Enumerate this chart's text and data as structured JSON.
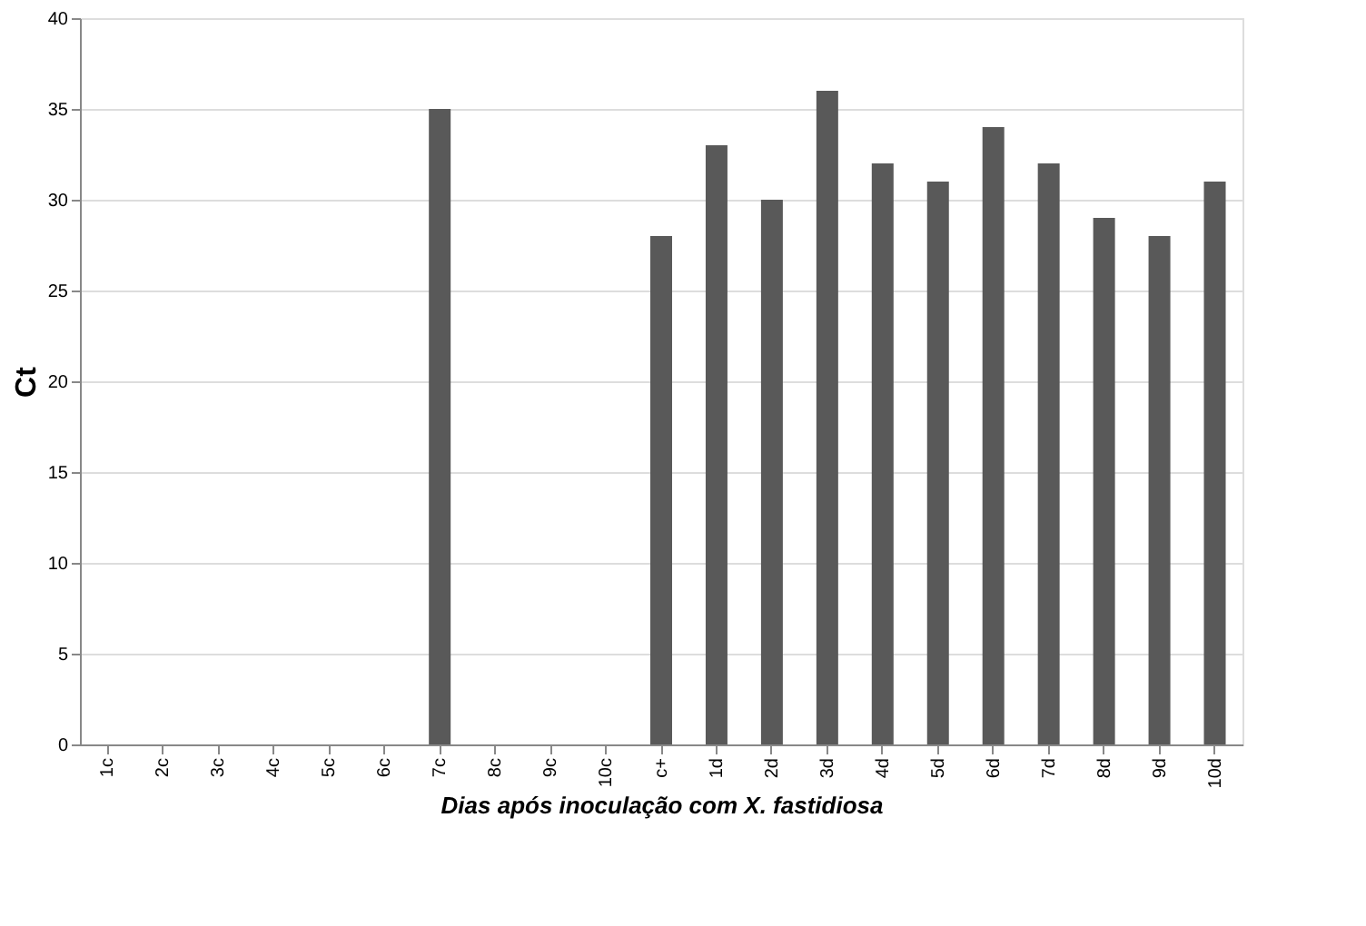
{
  "chart_data": {
    "type": "bar",
    "xlabel": "Dias após inoculação com X. fastidiosa",
    "ylabel": "Ct",
    "categories": [
      "1c",
      "2c",
      "3c",
      "4c",
      "5c",
      "6c",
      "7c",
      "8c",
      "9c",
      "10c",
      "c+",
      "1d",
      "2d",
      "3d",
      "4d",
      "5d",
      "6d",
      "7d",
      "8d",
      "9d",
      "10d"
    ],
    "values": [
      0,
      0,
      0,
      0,
      0,
      0,
      35,
      0,
      0,
      0,
      28,
      33,
      30,
      36,
      32,
      31,
      34,
      32,
      29,
      28,
      31
    ],
    "color": "#595959",
    "ylim": [
      0,
      40
    ],
    "yticks": [
      0,
      5,
      10,
      15,
      20,
      25,
      30,
      35,
      40
    ],
    "grid": "y"
  }
}
